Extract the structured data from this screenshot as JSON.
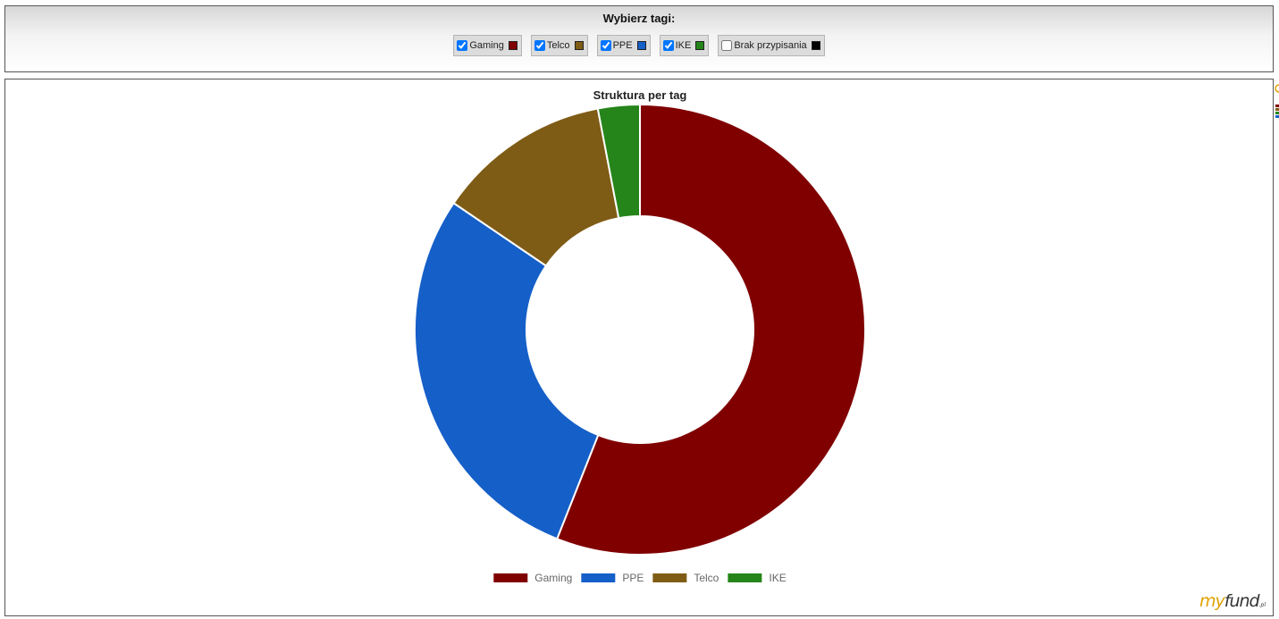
{
  "tag_selector": {
    "title": "Wybierz tagi:",
    "tags": [
      {
        "label": "Gaming",
        "checked": true,
        "color": "#800000"
      },
      {
        "label": "Telco",
        "checked": true,
        "color": "#7f5c15"
      },
      {
        "label": "PPE",
        "checked": true,
        "color": "#155fc8"
      },
      {
        "label": "IKE",
        "checked": true,
        "color": "#25851a"
      },
      {
        "label": "Brak przypisania",
        "checked": false,
        "color": "#000000"
      }
    ]
  },
  "logo": {
    "my": "my",
    "fund": "fund",
    "suffix": ".pl"
  },
  "chart_data": {
    "type": "pie",
    "variant": "donut",
    "title": "Struktura per tag",
    "legend_position": "bottom",
    "series": [
      {
        "name": "Gaming",
        "value": 56.0,
        "color": "#800000"
      },
      {
        "name": "PPE",
        "value": 28.5,
        "color": "#155fc8"
      },
      {
        "name": "Telco",
        "value": 12.5,
        "color": "#7f5c15"
      },
      {
        "name": "IKE",
        "value": 3.0,
        "color": "#25851a"
      }
    ]
  }
}
